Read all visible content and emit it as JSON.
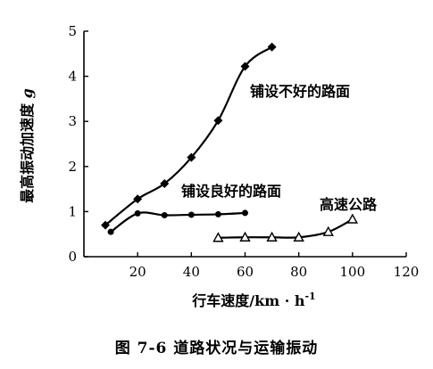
{
  "chart_data": {
    "type": "line",
    "xlabel": "行车速度/km · h",
    "xlabel_sup": "-1",
    "ylabel": "最高振动加速度",
    "ylabel_var": "g",
    "xlim": [
      0,
      120
    ],
    "ylim": [
      0,
      5
    ],
    "xticks": [
      "20",
      "40",
      "60",
      "80",
      "100",
      "120"
    ],
    "yticks": [
      "0",
      "1",
      "2",
      "3",
      "4",
      "5"
    ],
    "grid": false,
    "legend": "none",
    "series": [
      {
        "name": "铺设不好的路面",
        "marker": "diamond",
        "x": [
          8,
          20,
          30,
          40,
          50,
          60,
          70
        ],
        "y": [
          0.7,
          1.28,
          1.62,
          2.2,
          3.02,
          4.22,
          4.65
        ]
      },
      {
        "name": "铺设良好的路面",
        "marker": "circle",
        "x": [
          10,
          20,
          30,
          40,
          50,
          60
        ],
        "y": [
          0.55,
          0.96,
          0.92,
          0.93,
          0.94,
          0.97
        ]
      },
      {
        "name": "高速公路",
        "marker": "triangle",
        "x": [
          50,
          60,
          70,
          80,
          91,
          100
        ],
        "y": [
          0.42,
          0.43,
          0.43,
          0.43,
          0.55,
          0.83
        ]
      }
    ]
  },
  "caption": "图 7-6   道路状况与运输振动"
}
